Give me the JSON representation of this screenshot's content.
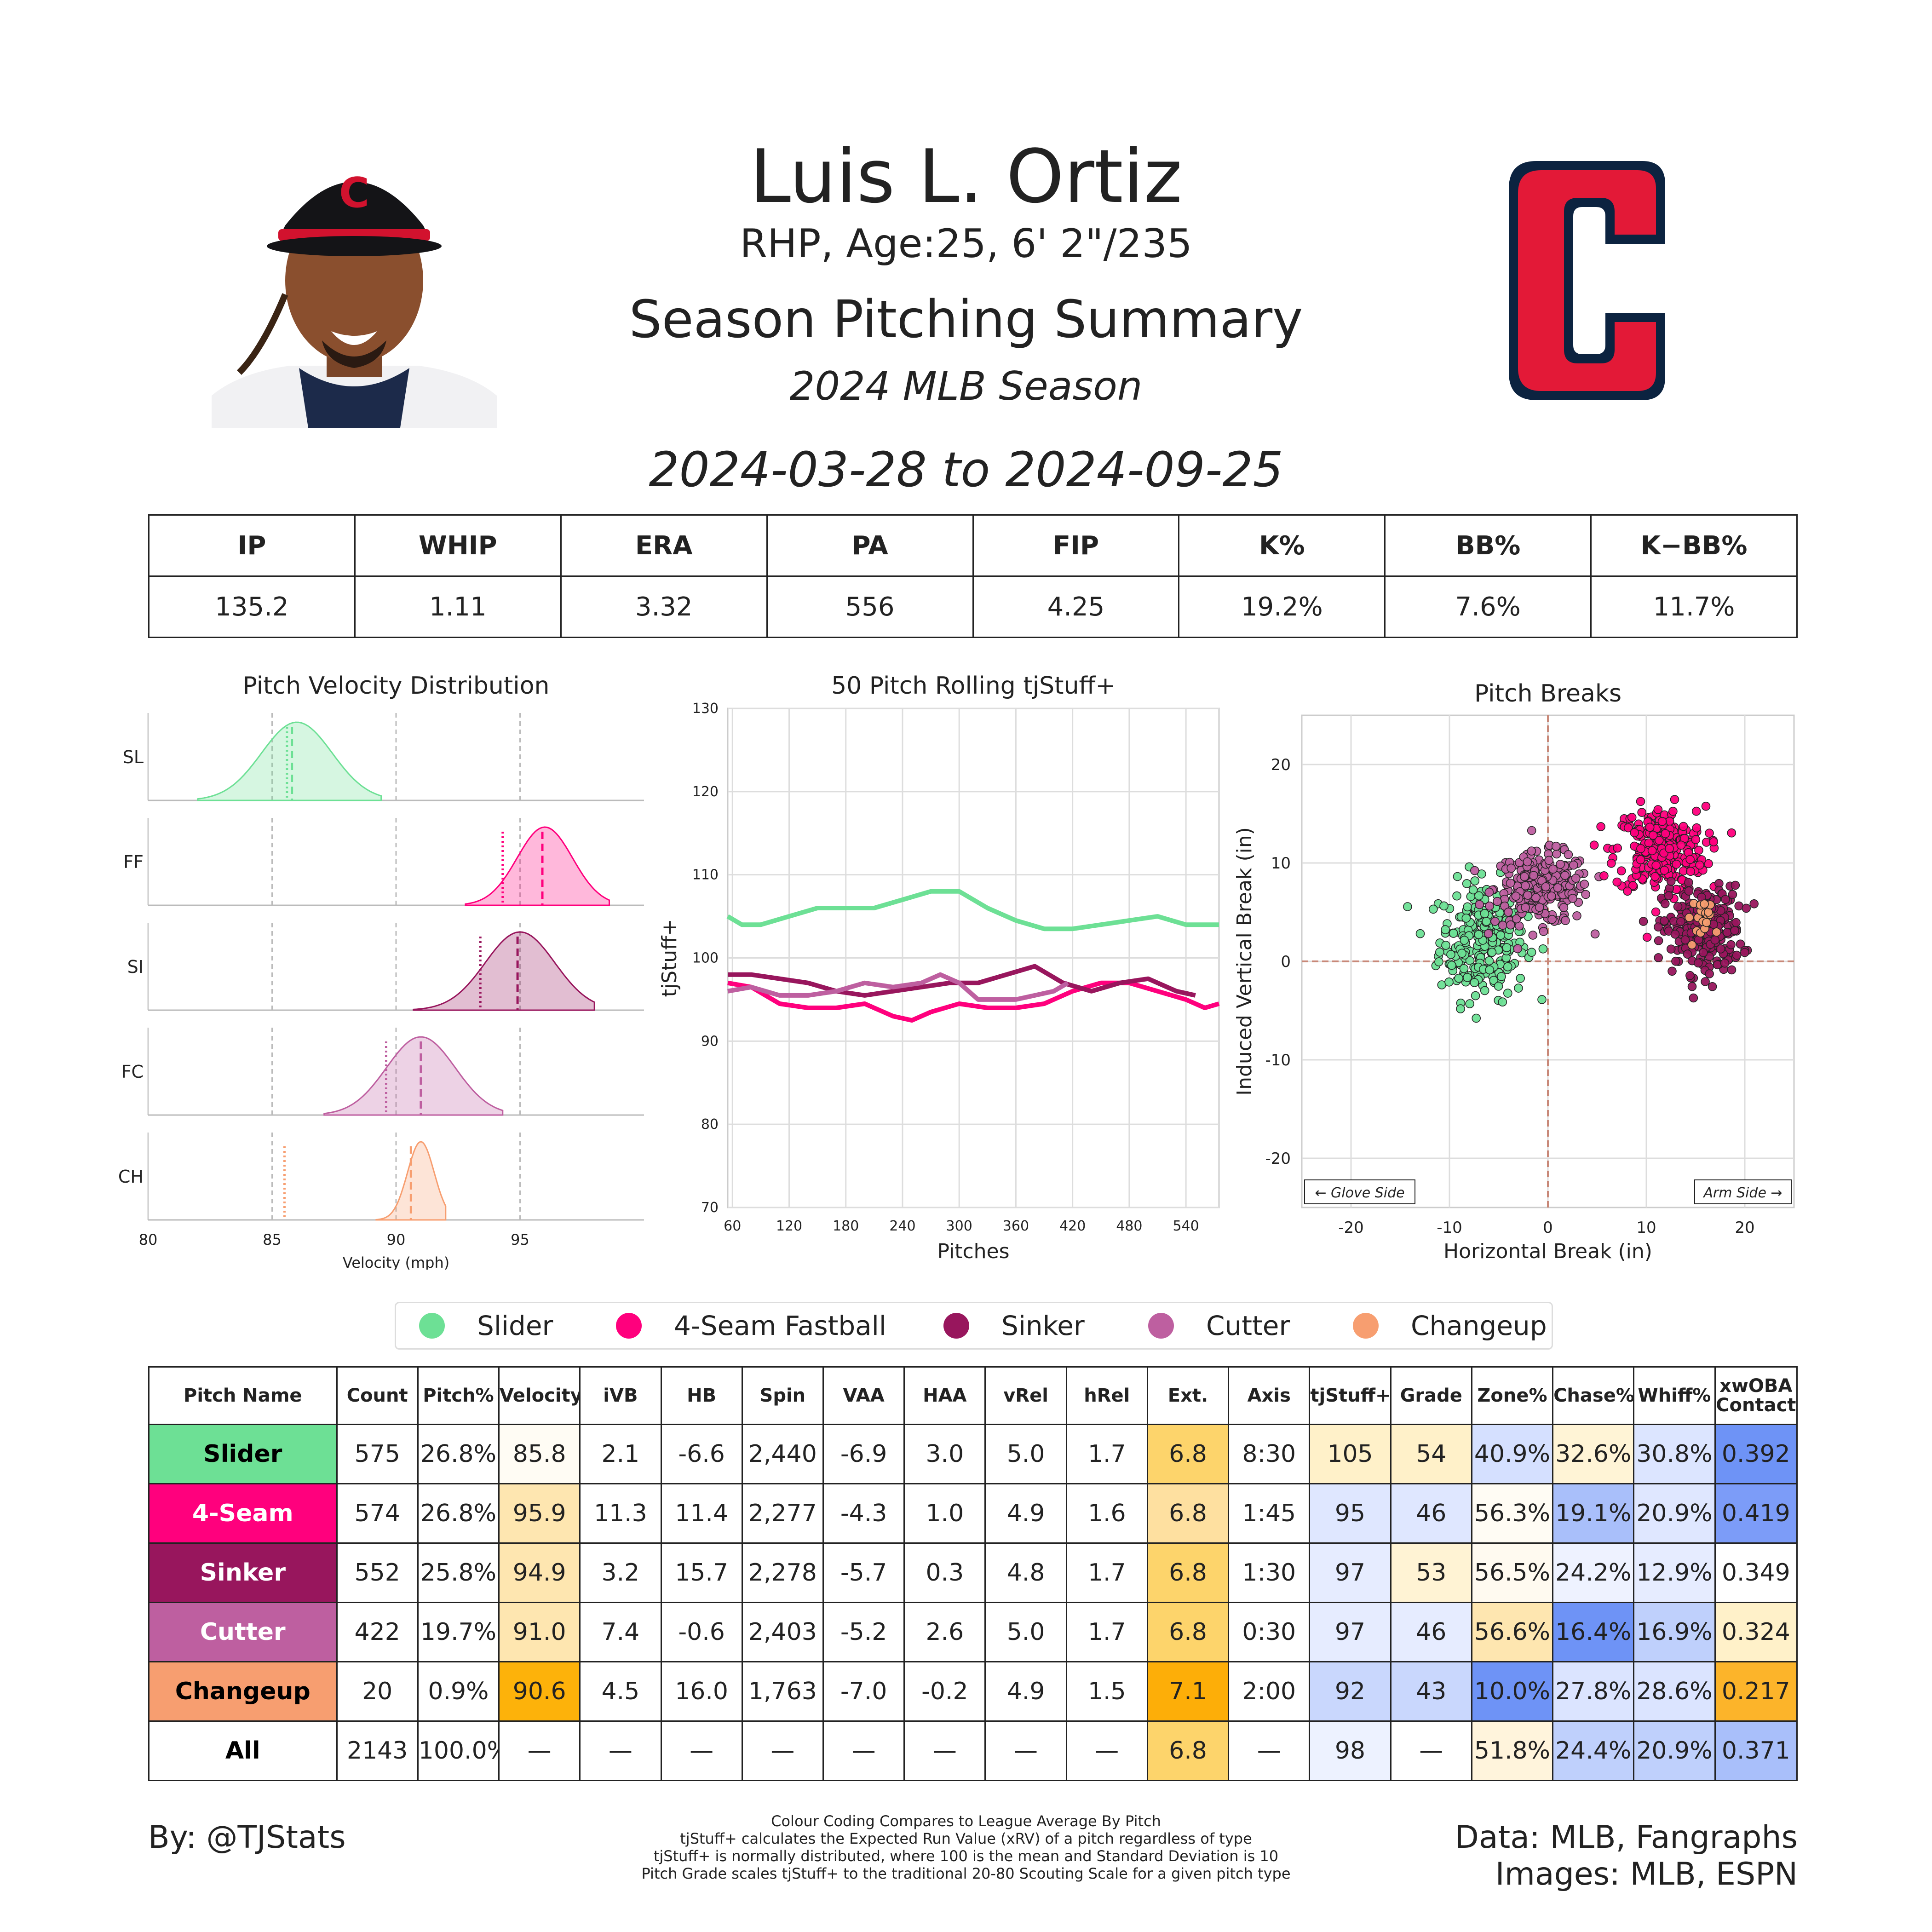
{
  "header": {
    "name": "Luis L. Ortiz",
    "bio": "RHP, Age:25, 6' 2\"/235",
    "summary_title": "Season Pitching Summary",
    "season": "2024 MLB Season",
    "date_range": "2024-03-28 to 2024-09-25"
  },
  "colors": {
    "Slider": "#6de095",
    "4-Seam Fastball": "#ff007d",
    "Sinker": "#98165d",
    "Cutter": "#be5fa0",
    "Changeup": "#f79e70",
    "team_red": "#e31937",
    "team_navy": "#0c2340"
  },
  "stats": {
    "headers": [
      "IP",
      "WHIP",
      "ERA",
      "PA",
      "FIP",
      "K%",
      "BB%",
      "K−BB%"
    ],
    "values": [
      "135.2",
      "1.11",
      "3.32",
      "556",
      "4.25",
      "19.2%",
      "7.6%",
      "11.7%"
    ]
  },
  "chart_data": [
    {
      "type": "area",
      "title": "Pitch Velocity Distribution",
      "xlabel": "Velocity (mph)",
      "xlim": [
        80,
        100
      ],
      "xticks": [
        "80",
        "85",
        "90",
        "95"
      ],
      "series": [
        {
          "name": "SL",
          "mean": 85.8,
          "league_avg": 85.6,
          "min": 82.0,
          "max": 89.4,
          "peak": 86.0
        },
        {
          "name": "FF",
          "mean": 95.9,
          "league_avg": 94.3,
          "min": 92.8,
          "max": 98.6,
          "peak": 96.0
        },
        {
          "name": "SI",
          "mean": 94.9,
          "league_avg": 93.4,
          "min": 90.7,
          "max": 98.0,
          "peak": 95.0
        },
        {
          "name": "FC",
          "mean": 91.0,
          "league_avg": 89.6,
          "min": 87.1,
          "max": 94.3,
          "peak": 91.0
        },
        {
          "name": "CH",
          "mean": 90.6,
          "league_avg": 85.5,
          "min": 89.2,
          "max": 92.0,
          "peak": 91.0
        }
      ]
    },
    {
      "type": "line",
      "title": "50 Pitch Rolling tjStuff+",
      "xlabel": "Pitches",
      "ylabel": "tjStuff+",
      "xlim": [
        55,
        575
      ],
      "ylim": [
        70,
        130
      ],
      "xticks": [
        "60",
        "120",
        "180",
        "240",
        "300",
        "360",
        "420",
        "480",
        "540"
      ],
      "yticks": [
        "70",
        "80",
        "90",
        "100",
        "110",
        "120",
        "130"
      ],
      "series": [
        {
          "name": "Slider",
          "x": [
            55,
            70,
            90,
            120,
            150,
            180,
            210,
            240,
            270,
            300,
            330,
            360,
            390,
            420,
            450,
            480,
            510,
            540,
            560,
            575
          ],
          "y": [
            105,
            104,
            104,
            105,
            106,
            106,
            106,
            107,
            108,
            108,
            106,
            104.5,
            103.5,
            103.5,
            104,
            104.5,
            105,
            104,
            104,
            104
          ]
        },
        {
          "name": "4-Seam Fastball",
          "x": [
            55,
            80,
            110,
            140,
            170,
            200,
            230,
            250,
            270,
            300,
            330,
            360,
            390,
            420,
            450,
            480,
            510,
            540,
            560,
            575
          ],
          "y": [
            97,
            96.5,
            94.5,
            94,
            94,
            94.5,
            93,
            92.5,
            93.5,
            94.5,
            94,
            94,
            94.5,
            96,
            97,
            97,
            96,
            95,
            94,
            94.5
          ]
        },
        {
          "name": "Sinker",
          "x": [
            55,
            80,
            110,
            140,
            170,
            200,
            230,
            260,
            290,
            320,
            350,
            380,
            410,
            440,
            470,
            500,
            530,
            550
          ],
          "y": [
            98,
            98,
            97.5,
            97,
            96,
            95.5,
            96,
            96.5,
            97,
            97,
            98,
            99,
            97,
            96,
            97,
            97.5,
            96,
            95.5
          ]
        },
        {
          "name": "Cutter",
          "x": [
            55,
            80,
            110,
            140,
            170,
            200,
            230,
            260,
            280,
            300,
            320,
            340,
            360,
            380,
            400,
            415
          ],
          "y": [
            96,
            96.5,
            95.5,
            95.5,
            96,
            97,
            96.5,
            97,
            98,
            97,
            95,
            95,
            95,
            95.5,
            96,
            97
          ]
        }
      ]
    },
    {
      "type": "scatter",
      "title": "Pitch Breaks",
      "xlabel": "Horizontal Break (in)",
      "ylabel": "Induced Vertical Break (in)",
      "xlim": [
        -25,
        25
      ],
      "ylim": [
        -25,
        25
      ],
      "xticks": [
        "-20",
        "-10",
        "0",
        "10",
        "20"
      ],
      "yticks": [
        "-20",
        "-10",
        "0",
        "10",
        "20"
      ],
      "annotations": [
        "← Glove Side",
        "Arm Side →"
      ],
      "series": [
        {
          "name": "Slider",
          "center": [
            -6.6,
            2.1
          ],
          "spread": [
            2.2,
            3.0
          ],
          "count": 575
        },
        {
          "name": "4-Seam Fastball",
          "center": [
            11.4,
            11.3
          ],
          "spread": [
            2.3,
            2.2
          ],
          "count": 574
        },
        {
          "name": "Sinker",
          "center": [
            15.7,
            3.2
          ],
          "spread": [
            2.0,
            2.2
          ],
          "count": 552
        },
        {
          "name": "Cutter",
          "center": [
            -0.6,
            7.4
          ],
          "spread": [
            2.4,
            1.8
          ],
          "count": 422
        },
        {
          "name": "Changeup",
          "center": [
            16.0,
            4.5
          ],
          "spread": [
            1.0,
            1.0
          ],
          "count": 20
        }
      ]
    }
  ],
  "legend": [
    "Slider",
    "4-Seam Fastball",
    "Sinker",
    "Cutter",
    "Changeup"
  ],
  "pitch_table": {
    "headers": [
      "Pitch Name",
      "Count",
      "Pitch%",
      "Velocity",
      "iVB",
      "HB",
      "Spin",
      "VAA",
      "HAA",
      "vRel",
      "hRel",
      "Ext.",
      "Axis",
      "tjStuff+",
      "Grade",
      "Zone%",
      "Chase%",
      "Whiff%",
      "xwOBA Contact"
    ],
    "rows": [
      {
        "name": "Slider",
        "bg": "#6de095",
        "fg": "#000000",
        "cells": [
          "575",
          "26.8%",
          "85.8",
          "2.1",
          "-6.6",
          "2,440",
          "-6.9",
          "3.0",
          "5.0",
          "1.7",
          "6.8",
          "8:30",
          "105",
          "54",
          "40.9%",
          "32.6%",
          "30.8%",
          "0.392"
        ],
        "shades": [
          "",
          "",
          "#fffcf4",
          "",
          "",
          "",
          "",
          "",
          "",
          "",
          "#fdd46b",
          "",
          "#fff1c9",
          "#fff1c9",
          "#d5e0ff",
          "#fff4d6",
          "#dce5ff",
          "#6e93f6"
        ]
      },
      {
        "name": "4-Seam",
        "bg": "#ff007d",
        "fg": "#ffffff",
        "cells": [
          "574",
          "26.8%",
          "95.9",
          "11.3",
          "11.4",
          "2,277",
          "-4.3",
          "1.0",
          "4.9",
          "1.6",
          "6.8",
          "1:45",
          "95",
          "46",
          "56.3%",
          "19.1%",
          "20.9%",
          "0.419"
        ],
        "shades": [
          "",
          "",
          "#fee6b0",
          "",
          "",
          "",
          "",
          "",
          "",
          "",
          "#fee0a0",
          "",
          "#dfe7ff",
          "#dfe7ff",
          "#fffcf4",
          "#a9bffa",
          "#dfe7ff",
          "#7c9cf8"
        ]
      },
      {
        "name": "Sinker",
        "bg": "#98165d",
        "fg": "#ffffff",
        "cells": [
          "552",
          "25.8%",
          "94.9",
          "3.2",
          "15.7",
          "2,278",
          "-5.7",
          "0.3",
          "4.8",
          "1.7",
          "6.8",
          "1:30",
          "97",
          "53",
          "56.5%",
          "24.2%",
          "12.9%",
          "0.349"
        ],
        "shades": [
          "",
          "",
          "#fee6b0",
          "",
          "",
          "",
          "",
          "",
          "",
          "",
          "#fdd46b",
          "",
          "#e6ecff",
          "#fff3d4",
          "#fffaf0",
          "#eef2ff",
          "#e6ecff",
          ""
        ]
      },
      {
        "name": "Cutter",
        "bg": "#be5fa0",
        "fg": "#ffffff",
        "cells": [
          "422",
          "19.7%",
          "91.0",
          "7.4",
          "-0.6",
          "2,403",
          "-5.2",
          "2.6",
          "5.0",
          "1.7",
          "6.8",
          "0:30",
          "97",
          "46",
          "56.6%",
          "16.4%",
          "16.9%",
          "0.324"
        ],
        "shades": [
          "",
          "",
          "#fee6b0",
          "",
          "",
          "",
          "",
          "",
          "",
          "",
          "#fdd46b",
          "",
          "#e6ecff",
          "#e6ecff",
          "#fee6b0",
          "#6e93f6",
          "#bfd0fc",
          "#fff1c9"
        ]
      },
      {
        "name": "Changeup",
        "bg": "#f79e70",
        "fg": "#000000",
        "cells": [
          "20",
          "0.9%",
          "90.6",
          "4.5",
          "16.0",
          "1,763",
          "-7.0",
          "-0.2",
          "4.9",
          "1.5",
          "7.1",
          "2:00",
          "92",
          "43",
          "10.0%",
          "27.8%",
          "28.6%",
          "0.217"
        ],
        "shades": [
          "",
          "",
          "#fdb20a",
          "",
          "",
          "",
          "",
          "",
          "",
          "",
          "#fdae08",
          "",
          "#c9d7fd",
          "#c9d7fd",
          "#6e93f6",
          "#dbe4ff",
          "#dbe4ff",
          "#fcb42a"
        ]
      },
      {
        "name": "All",
        "bg": "#ffffff",
        "fg": "#000000",
        "cells": [
          "2143",
          "100.0%",
          "—",
          "—",
          "—",
          "—",
          "—",
          "—",
          "—",
          "—",
          "6.8",
          "—",
          "98",
          "—",
          "51.8%",
          "24.4%",
          "20.9%",
          "0.371"
        ],
        "shades": [
          "",
          "",
          "",
          "",
          "",
          "",
          "",
          "",
          "",
          "",
          "#fdd46b",
          "",
          "#edf2ff",
          "",
          "#fff4dc",
          "#bfd0fc",
          "#bfd0fc",
          "#a9bffa"
        ]
      }
    ]
  },
  "footer": {
    "by": "By: @TJStats",
    "data": "Data: MLB, Fangraphs",
    "images": "Images: MLB, ESPN",
    "notes": [
      "Colour Coding Compares to League Average By Pitch",
      "tjStuff+ calculates the Expected Run Value (xRV) of a pitch regardless of type",
      "tjStuff+ is normally distributed, where 100 is the mean and Standard Deviation is 10",
      "Pitch Grade scales tjStuff+ to the traditional 20-80 Scouting Scale for a given pitch type"
    ]
  }
}
